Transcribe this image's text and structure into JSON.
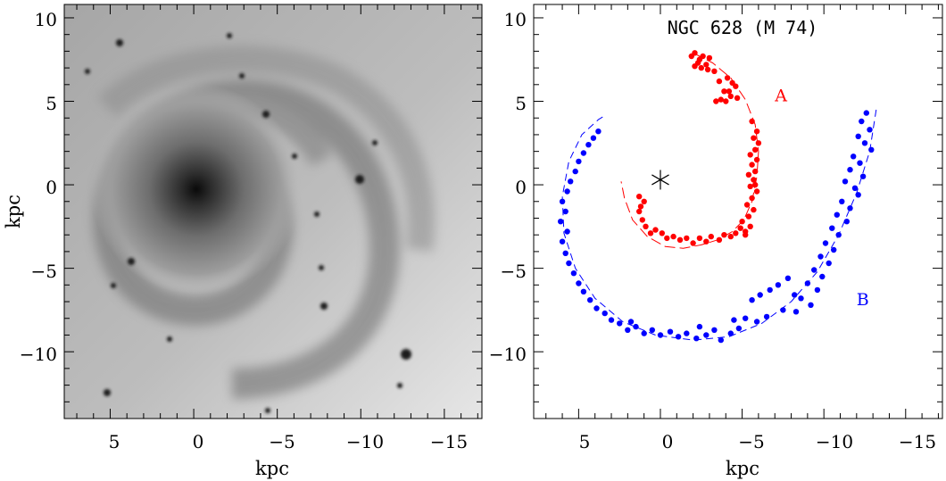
{
  "chart_data": [
    {
      "type": "image",
      "xlabel": "kpc",
      "ylabel": "kpc",
      "xlim": [
        7.75,
        -17.25
      ],
      "ylim": [
        -14.0,
        10.8
      ],
      "xticks": [
        "5",
        "0",
        "−5",
        "−10",
        "−15"
      ],
      "yticks": [
        "10",
        "5",
        "0",
        "−5",
        "−10"
      ],
      "image": "grayscale photograph of spiral galaxy NGC 628, nucleus near (0, 0)"
    },
    {
      "type": "scatter",
      "title": "NGC 628 (M 74)",
      "xlabel": "kpc",
      "ylabel": "kpc",
      "xlim": [
        7.75,
        -17.25
      ],
      "ylim": [
        -14.0,
        10.8
      ],
      "xticks": [
        "5",
        "0",
        "−5",
        "−10",
        "−15"
      ],
      "yticks": [
        "10",
        "5",
        "0",
        "−5",
        "−10"
      ],
      "center_marker": [
        0,
        0.3
      ],
      "colors": {
        "A": "#ff0000",
        "B": "#0000ff"
      },
      "series": [
        {
          "name": "A",
          "label_position": [
            -7.0,
            5.0
          ],
          "fit_curve": [
            [
              -2.0,
              7.9
            ],
            [
              -3.2,
              7.3
            ],
            [
              -4.3,
              6.4
            ],
            [
              -5.2,
              5.1
            ],
            [
              -5.8,
              3.6
            ],
            [
              -6.0,
              2.0
            ],
            [
              -5.9,
              0.5
            ],
            [
              -5.6,
              -1.0
            ],
            [
              -5.1,
              -2.1
            ],
            [
              -4.4,
              -2.8
            ],
            [
              -3.5,
              -3.3
            ],
            [
              -2.5,
              -3.6
            ],
            [
              -1.4,
              -3.8
            ],
            [
              -0.3,
              -3.7
            ],
            [
              0.8,
              -3.1
            ],
            [
              1.7,
              -2.1
            ],
            [
              2.2,
              -0.8
            ],
            [
              2.4,
              0.2
            ]
          ],
          "points": [
            [
              -1.9,
              7.7
            ],
            [
              -2.1,
              7.9
            ],
            [
              -2.4,
              7.5
            ],
            [
              -2.6,
              7.7
            ],
            [
              -2.3,
              7.3
            ],
            [
              -2.8,
              7.2
            ],
            [
              -3.0,
              7.6
            ],
            [
              -2.5,
              7.0
            ],
            [
              -2.9,
              6.9
            ],
            [
              -2.1,
              7.1
            ],
            [
              -3.3,
              6.8
            ],
            [
              -3.6,
              6.2
            ],
            [
              -4.1,
              6.4
            ],
            [
              -4.4,
              6.1
            ],
            [
              -4.2,
              5.6
            ],
            [
              -4.6,
              5.9
            ],
            [
              -4.3,
              5.3
            ],
            [
              -3.9,
              5.6
            ],
            [
              -4.7,
              5.2
            ],
            [
              -3.7,
              5.1
            ],
            [
              -3.4,
              5.0
            ],
            [
              -4.0,
              5.0
            ],
            [
              -5.6,
              3.8
            ],
            [
              -5.9,
              3.2
            ],
            [
              -5.7,
              2.8
            ],
            [
              -6.0,
              2.5
            ],
            [
              -5.8,
              2.1
            ],
            [
              -5.5,
              1.8
            ],
            [
              -5.9,
              1.5
            ],
            [
              -5.6,
              1.2
            ],
            [
              -5.8,
              0.8
            ],
            [
              -5.4,
              0.6
            ],
            [
              -5.7,
              0.3
            ],
            [
              -5.5,
              -0.1
            ],
            [
              -5.9,
              -0.4
            ],
            [
              -5.6,
              -0.8
            ],
            [
              -5.3,
              -1.2
            ],
            [
              -5.7,
              -1.5
            ],
            [
              -5.4,
              -1.9
            ],
            [
              -5.0,
              -2.2
            ],
            [
              -5.5,
              -2.5
            ],
            [
              -5.2,
              -2.8
            ],
            [
              -4.9,
              -2.6
            ],
            [
              -4.6,
              -2.9
            ],
            [
              -4.3,
              -3.1
            ],
            [
              -3.9,
              -3.0
            ],
            [
              -3.6,
              -3.3
            ],
            [
              -3.1,
              -3.1
            ],
            [
              -2.8,
              -3.4
            ],
            [
              -2.4,
              -3.2
            ],
            [
              -2.0,
              -3.5
            ],
            [
              -1.6,
              -3.2
            ],
            [
              -1.2,
              -3.3
            ],
            [
              -0.8,
              -3.1
            ],
            [
              -0.4,
              -3.2
            ],
            [
              -0.1,
              -2.9
            ],
            [
              0.3,
              -2.7
            ],
            [
              0.6,
              -2.9
            ],
            [
              0.9,
              -2.5
            ],
            [
              1.1,
              -2.1
            ],
            [
              1.3,
              -1.6
            ],
            [
              1.2,
              -1.3
            ],
            [
              1.0,
              -1.0
            ],
            [
              1.3,
              -0.7
            ],
            [
              -5.8,
              0.0
            ],
            [
              -5.2,
              -3.0
            ]
          ]
        },
        {
          "name": "B",
          "label_position": [
            -12.0,
            -7.2
          ],
          "fit_curve": [
            [
              -13.2,
              4.5
            ],
            [
              -12.8,
              2.0
            ],
            [
              -12.0,
              -0.5
            ],
            [
              -10.9,
              -3.0
            ],
            [
              -9.6,
              -5.2
            ],
            [
              -8.0,
              -7.0
            ],
            [
              -6.2,
              -8.3
            ],
            [
              -4.2,
              -9.1
            ],
            [
              -2.0,
              -9.3
            ],
            [
              0.3,
              -9.0
            ],
            [
              2.3,
              -8.2
            ],
            [
              4.0,
              -6.8
            ],
            [
              5.2,
              -5.0
            ],
            [
              5.9,
              -2.9
            ],
            [
              6.0,
              -0.7
            ],
            [
              5.6,
              1.4
            ],
            [
              4.8,
              3.0
            ],
            [
              3.8,
              3.9
            ],
            [
              3.3,
              4.2
            ]
          ],
          "points": [
            [
              -12.6,
              4.3
            ],
            [
              -12.3,
              3.8
            ],
            [
              -12.8,
              3.3
            ],
            [
              -12.1,
              2.9
            ],
            [
              -12.5,
              2.5
            ],
            [
              -12.9,
              2.1
            ],
            [
              -11.8,
              1.7
            ],
            [
              -12.2,
              1.3
            ],
            [
              -11.6,
              0.9
            ],
            [
              -12.4,
              0.5
            ],
            [
              -11.3,
              0.2
            ],
            [
              -11.9,
              -0.2
            ],
            [
              -12.1,
              -0.6
            ],
            [
              -11.1,
              -1.0
            ],
            [
              -11.6,
              -1.4
            ],
            [
              -10.8,
              -1.8
            ],
            [
              -11.4,
              -2.2
            ],
            [
              -10.5,
              -2.6
            ],
            [
              -10.9,
              -3.0
            ],
            [
              -10.1,
              -3.5
            ],
            [
              -10.6,
              -3.9
            ],
            [
              -9.8,
              -4.3
            ],
            [
              -10.3,
              -4.7
            ],
            [
              -9.4,
              -5.1
            ],
            [
              -9.9,
              -5.5
            ],
            [
              -9.0,
              -5.9
            ],
            [
              -9.6,
              -6.3
            ],
            [
              -8.6,
              -6.8
            ],
            [
              -9.2,
              -7.2
            ],
            [
              -8.3,
              -7.6
            ],
            [
              -7.8,
              -5.6
            ],
            [
              -7.2,
              -6.0
            ],
            [
              -6.7,
              -6.3
            ],
            [
              -6.1,
              -6.6
            ],
            [
              -5.6,
              -6.9
            ],
            [
              -7.5,
              -7.5
            ],
            [
              -6.5,
              -7.9
            ],
            [
              -5.9,
              -8.2
            ],
            [
              -5.2,
              -8.0
            ],
            [
              -4.8,
              -8.6
            ],
            [
              -4.3,
              -8.9
            ],
            [
              -3.7,
              -9.3
            ],
            [
              -3.3,
              -8.7
            ],
            [
              -2.8,
              -9.0
            ],
            [
              -2.2,
              -9.2
            ],
            [
              -1.6,
              -8.9
            ],
            [
              -1.1,
              -9.1
            ],
            [
              -0.6,
              -8.8
            ],
            [
              0.0,
              -9.0
            ],
            [
              0.5,
              -8.7
            ],
            [
              1.0,
              -8.9
            ],
            [
              1.5,
              -8.5
            ],
            [
              2.0,
              -8.7
            ],
            [
              2.5,
              -8.3
            ],
            [
              3.0,
              -8.1
            ],
            [
              3.4,
              -7.7
            ],
            [
              3.9,
              -7.4
            ],
            [
              4.3,
              -6.9
            ],
            [
              4.7,
              -6.4
            ],
            [
              5.0,
              -5.9
            ],
            [
              5.3,
              -5.3
            ],
            [
              5.6,
              -4.7
            ],
            [
              5.8,
              -4.1
            ],
            [
              6.0,
              -3.4
            ],
            [
              5.7,
              -2.8
            ],
            [
              6.1,
              -2.2
            ],
            [
              5.8,
              -1.6
            ],
            [
              6.0,
              -1.0
            ],
            [
              5.7,
              -0.4
            ],
            [
              5.5,
              0.2
            ],
            [
              5.2,
              0.8
            ],
            [
              5.0,
              1.4
            ],
            [
              4.7,
              1.9
            ],
            [
              4.4,
              2.4
            ],
            [
              4.1,
              2.8
            ],
            [
              3.8,
              3.2
            ],
            [
              -4.5,
              -8.1
            ],
            [
              -2.4,
              -8.5
            ],
            [
              1.8,
              -8.2
            ],
            [
              -8.2,
              -6.6
            ]
          ]
        }
      ]
    }
  ]
}
